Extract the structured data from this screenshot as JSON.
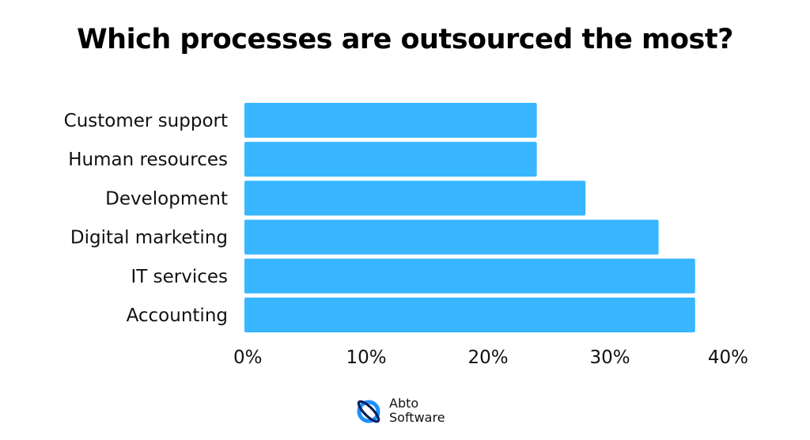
{
  "chart_data": {
    "type": "bar",
    "orientation": "horizontal",
    "title": "Which processes are outsourced the most?",
    "categories": [
      "Customer support",
      "Human resources",
      "Development",
      "Digital marketing",
      "IT services",
      "Accounting"
    ],
    "values": [
      24,
      24,
      28,
      34,
      37,
      37
    ],
    "xlim": [
      0,
      40
    ],
    "xticks": [
      "0%",
      "10%",
      "20%",
      "30%",
      "40%"
    ],
    "xtick_values": [
      0,
      10,
      20,
      30,
      40
    ],
    "unit": "%",
    "bar_color": "#38B6FF",
    "grid": false,
    "legend": "none"
  },
  "logo": {
    "name": "abto-software-logo",
    "line1": "Abto",
    "line2": "Software",
    "colors": [
      "#1E90FF",
      "#0A1E5A"
    ]
  }
}
